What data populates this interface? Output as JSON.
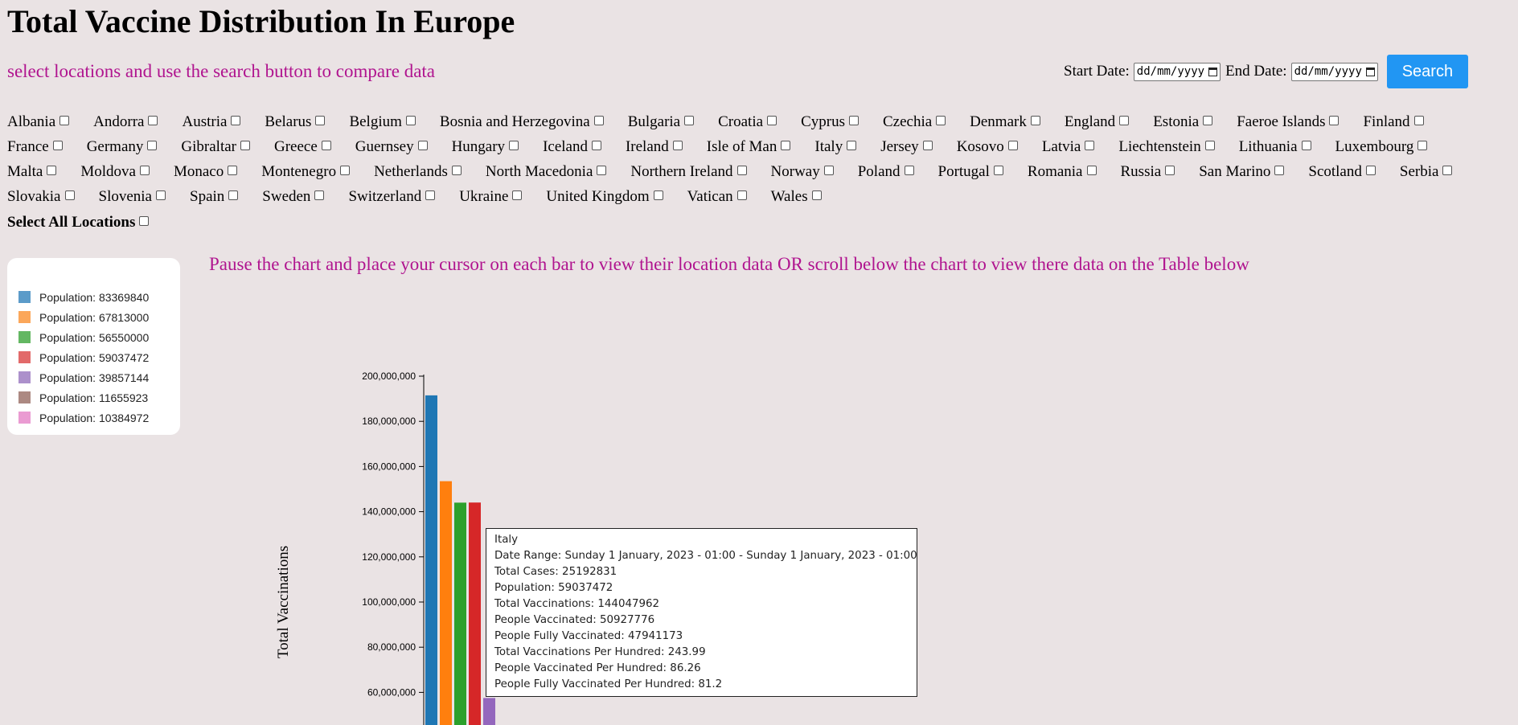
{
  "page": {
    "title": "Total Vaccine Distribution In Europe",
    "subtitle": "select locations and use the search button to compare data",
    "chart_instruction": "Pause the chart and place your cursor on each bar to view their location data OR scroll below the chart to view there data on the Table below"
  },
  "date_form": {
    "start_label": "Start Date:",
    "start_placeholder": "dd/mm/yyyy",
    "end_label": "End Date:",
    "end_placeholder": "dd/mm/yyyy",
    "search_label": "Search",
    "calendar_icon": "calendar-icon",
    "search_color": "#2196f3"
  },
  "locations": {
    "rows": [
      [
        "Albania",
        "Andorra",
        "Austria",
        "Belarus",
        "Belgium",
        "Bosnia and Herzegovina",
        "Bulgaria",
        "Croatia",
        "Cyprus",
        "Czechia",
        "Denmark",
        "England",
        "Estonia",
        "Faeroe Islands",
        "Finland"
      ],
      [
        "France",
        "Germany",
        "Gibraltar",
        "Greece",
        "Guernsey",
        "Hungary",
        "Iceland",
        "Ireland",
        "Isle of Man",
        "Italy",
        "Jersey",
        "Kosovo",
        "Latvia",
        "Liechtenstein",
        "Lithuania",
        "Luxembourg"
      ],
      [
        "Malta",
        "Moldova",
        "Monaco",
        "Montenegro",
        "Netherlands",
        "North Macedonia",
        "Northern Ireland",
        "Norway",
        "Poland",
        "Portugal",
        "Romania",
        "Russia",
        "San Marino",
        "Scotland",
        "Serbia"
      ],
      [
        "Slovakia",
        "Slovenia",
        "Spain",
        "Sweden",
        "Switzerland",
        "Ukraine",
        "United Kingdom",
        "Vatican",
        "Wales"
      ]
    ],
    "select_all_label": "Select All Locations"
  },
  "legend": {
    "items": [
      {
        "label": "Population: 83369840",
        "color": "#5b9bc9"
      },
      {
        "label": "Population: 67813000",
        "color": "#fba75a"
      },
      {
        "label": "Population: 56550000",
        "color": "#63b762"
      },
      {
        "label": "Population: 59037472",
        "color": "#e26a6a"
      },
      {
        "label": "Population: 39857144",
        "color": "#ac90cb"
      },
      {
        "label": "Population: 11655923",
        "color": "#ac8982"
      },
      {
        "label": "Population: 10384972",
        "color": "#ea9bd2"
      }
    ]
  },
  "chart_data": {
    "type": "bar",
    "ylabel": "Total Vaccinations",
    "ylim": [
      0,
      200000000
    ],
    "y_ticks": [
      "200,000,000",
      "180,000,000",
      "160,000,000",
      "140,000,000",
      "120,000,000",
      "100,000,000",
      "80,000,000",
      "60,000,000"
    ],
    "values": [
      191500000,
      153500000,
      144000000,
      144047962,
      57500000
    ],
    "colors": [
      "#1f77b4",
      "#ff7f0e",
      "#2ca02c",
      "#d62728",
      "#9467bd"
    ]
  },
  "tooltip": {
    "lines": [
      "Italy",
      "Date Range: Sunday  1 January, 2023 - 01:00 - Sunday  1 January, 2023 - 01:00",
      "Total Cases: 25192831",
      "Population: 59037472",
      "Total Vaccinations: 144047962",
      "People Vaccinated: 50927776",
      "People Fully Vaccinated: 47941173",
      "Total Vaccinations Per Hundred: 243.99",
      "People Vaccinated Per Hundred: 86.26",
      "People Fully Vaccinated Per Hundred: 81.2"
    ]
  }
}
